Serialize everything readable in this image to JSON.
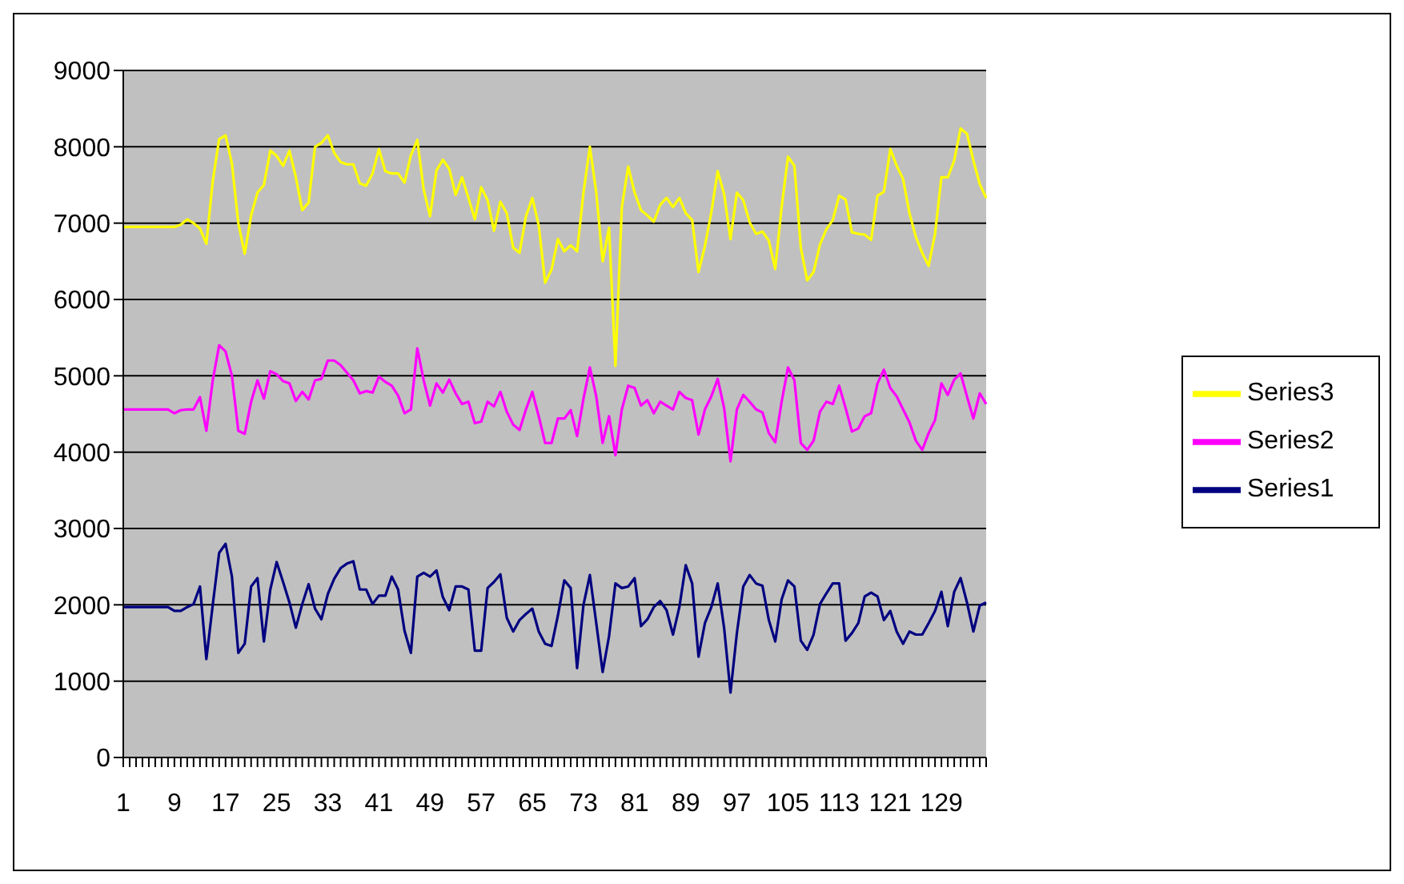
{
  "chart_data": {
    "type": "line",
    "categories": [
      "1",
      null,
      null,
      null,
      null,
      null,
      null,
      null,
      "9",
      null,
      null,
      null,
      null,
      null,
      null,
      null,
      "17",
      null,
      null,
      null,
      null,
      null,
      null,
      null,
      "25",
      null,
      null,
      null,
      null,
      null,
      null,
      null,
      "33",
      null,
      null,
      null,
      null,
      null,
      null,
      null,
      "41",
      null,
      null,
      null,
      null,
      null,
      null,
      null,
      "49",
      null,
      null,
      null,
      null,
      null,
      null,
      null,
      "57",
      null,
      null,
      null,
      null,
      null,
      null,
      null,
      "65",
      null,
      null,
      null,
      null,
      null,
      null,
      null,
      "73",
      null,
      null,
      null,
      null,
      null,
      null,
      null,
      "81",
      null,
      null,
      null,
      null,
      null,
      null,
      null,
      "89",
      null,
      null,
      null,
      null,
      null,
      null,
      null,
      "97",
      null,
      null,
      null,
      null,
      null,
      null,
      null,
      "105",
      null,
      null,
      null,
      null,
      null,
      null,
      null,
      "113",
      null,
      null,
      null,
      null,
      null,
      null,
      null,
      "121",
      null,
      null,
      null,
      null,
      null,
      null,
      null,
      "129",
      null,
      null,
      null,
      null,
      null,
      null,
      null
    ],
    "series": [
      {
        "name": "Series3",
        "color": "#ffff00",
        "values": [
          6950,
          6950,
          6950,
          6950,
          6950,
          6950,
          6950,
          6950,
          6950,
          6980,
          7050,
          7000,
          6930,
          6730,
          7550,
          8100,
          8150,
          7780,
          7000,
          6600,
          7100,
          7400,
          7500,
          7950,
          7880,
          7750,
          7950,
          7600,
          7170,
          7270,
          8000,
          8050,
          8150,
          7920,
          7800,
          7770,
          7770,
          7520,
          7490,
          7650,
          7970,
          7680,
          7650,
          7650,
          7530,
          7890,
          8090,
          7440,
          7090,
          7690,
          7830,
          7710,
          7370,
          7600,
          7330,
          7050,
          7470,
          7300,
          6900,
          7280,
          7130,
          6680,
          6610,
          7090,
          7330,
          6970,
          6220,
          6390,
          6790,
          6630,
          6710,
          6630,
          7400,
          8000,
          7400,
          6500,
          6940,
          5130,
          7210,
          7740,
          7400,
          7170,
          7100,
          7020,
          7240,
          7330,
          7210,
          7330,
          7130,
          7040,
          6360,
          6700,
          7140,
          7680,
          7380,
          6790,
          7400,
          7300,
          7010,
          6860,
          6890,
          6770,
          6400,
          7210,
          7870,
          7750,
          6680,
          6250,
          6360,
          6720,
          6920,
          7040,
          7360,
          7310,
          6880,
          6860,
          6850,
          6780,
          7360,
          7410,
          7970,
          7750,
          7580,
          7130,
          6820,
          6610,
          6440,
          6860,
          7600,
          7600,
          7820,
          8240,
          8170,
          7820,
          7510,
          7330
        ]
      },
      {
        "name": "Series2",
        "color": "#ff00ff",
        "values": [
          4560,
          4560,
          4560,
          4560,
          4560,
          4560,
          4560,
          4560,
          4510,
          4550,
          4560,
          4560,
          4720,
          4280,
          4940,
          5400,
          5320,
          5000,
          4280,
          4240,
          4660,
          4940,
          4700,
          5060,
          5020,
          4930,
          4900,
          4670,
          4790,
          4690,
          4940,
          4960,
          5200,
          5200,
          5140,
          5040,
          4940,
          4770,
          4800,
          4780,
          4990,
          4920,
          4870,
          4740,
          4510,
          4560,
          5360,
          4940,
          4610,
          4900,
          4780,
          4950,
          4770,
          4630,
          4660,
          4380,
          4400,
          4660,
          4600,
          4790,
          4530,
          4360,
          4290,
          4560,
          4790,
          4470,
          4120,
          4120,
          4440,
          4440,
          4550,
          4210,
          4700,
          5110,
          4730,
          4120,
          4470,
          3960,
          4560,
          4870,
          4840,
          4610,
          4680,
          4510,
          4660,
          4610,
          4560,
          4790,
          4710,
          4680,
          4230,
          4560,
          4730,
          4960,
          4580,
          3880,
          4560,
          4750,
          4660,
          4560,
          4520,
          4250,
          4130,
          4660,
          5110,
          4940,
          4120,
          4030,
          4150,
          4530,
          4660,
          4630,
          4870,
          4580,
          4270,
          4310,
          4470,
          4510,
          4900,
          5080,
          4840,
          4730,
          4560,
          4390,
          4150,
          4030,
          4250,
          4420,
          4900,
          4750,
          4950,
          5030,
          4730,
          4440,
          4770,
          4630
        ]
      },
      {
        "name": "Series1",
        "color": "#000080",
        "values": [
          1970,
          1970,
          1970,
          1970,
          1970,
          1970,
          1970,
          1970,
          1920,
          1920,
          1970,
          2010,
          2240,
          1290,
          2000,
          2680,
          2800,
          2370,
          1370,
          1490,
          2240,
          2350,
          1520,
          2200,
          2560,
          2300,
          2030,
          1700,
          2010,
          2270,
          1950,
          1810,
          2140,
          2340,
          2480,
          2540,
          2570,
          2200,
          2200,
          2010,
          2120,
          2120,
          2370,
          2200,
          1660,
          1370,
          2370,
          2420,
          2370,
          2450,
          2100,
          1930,
          2240,
          2240,
          2200,
          1400,
          1400,
          2220,
          2300,
          2400,
          1830,
          1650,
          1800,
          1880,
          1950,
          1650,
          1490,
          1460,
          1860,
          2320,
          2220,
          1170,
          2000,
          2390,
          1760,
          1120,
          1590,
          2280,
          2220,
          2240,
          2350,
          1720,
          1810,
          1970,
          2050,
          1930,
          1610,
          1970,
          2520,
          2280,
          1320,
          1760,
          1970,
          2280,
          1700,
          850,
          1630,
          2240,
          2390,
          2280,
          2250,
          1800,
          1520,
          2070,
          2320,
          2240,
          1530,
          1410,
          1610,
          2010,
          2150,
          2280,
          2280,
          1530,
          1630,
          1760,
          2110,
          2160,
          2110,
          1800,
          1920,
          1650,
          1490,
          1650,
          1610,
          1610,
          1760,
          1920,
          2170,
          1720,
          2170,
          2350,
          2030,
          1650,
          1990,
          2030
        ]
      }
    ],
    "ylim": [
      0,
      9000
    ],
    "yticks": [
      0,
      1000,
      2000,
      3000,
      4000,
      5000,
      6000,
      7000,
      8000,
      9000
    ],
    "grid": "y",
    "legend": "right"
  }
}
